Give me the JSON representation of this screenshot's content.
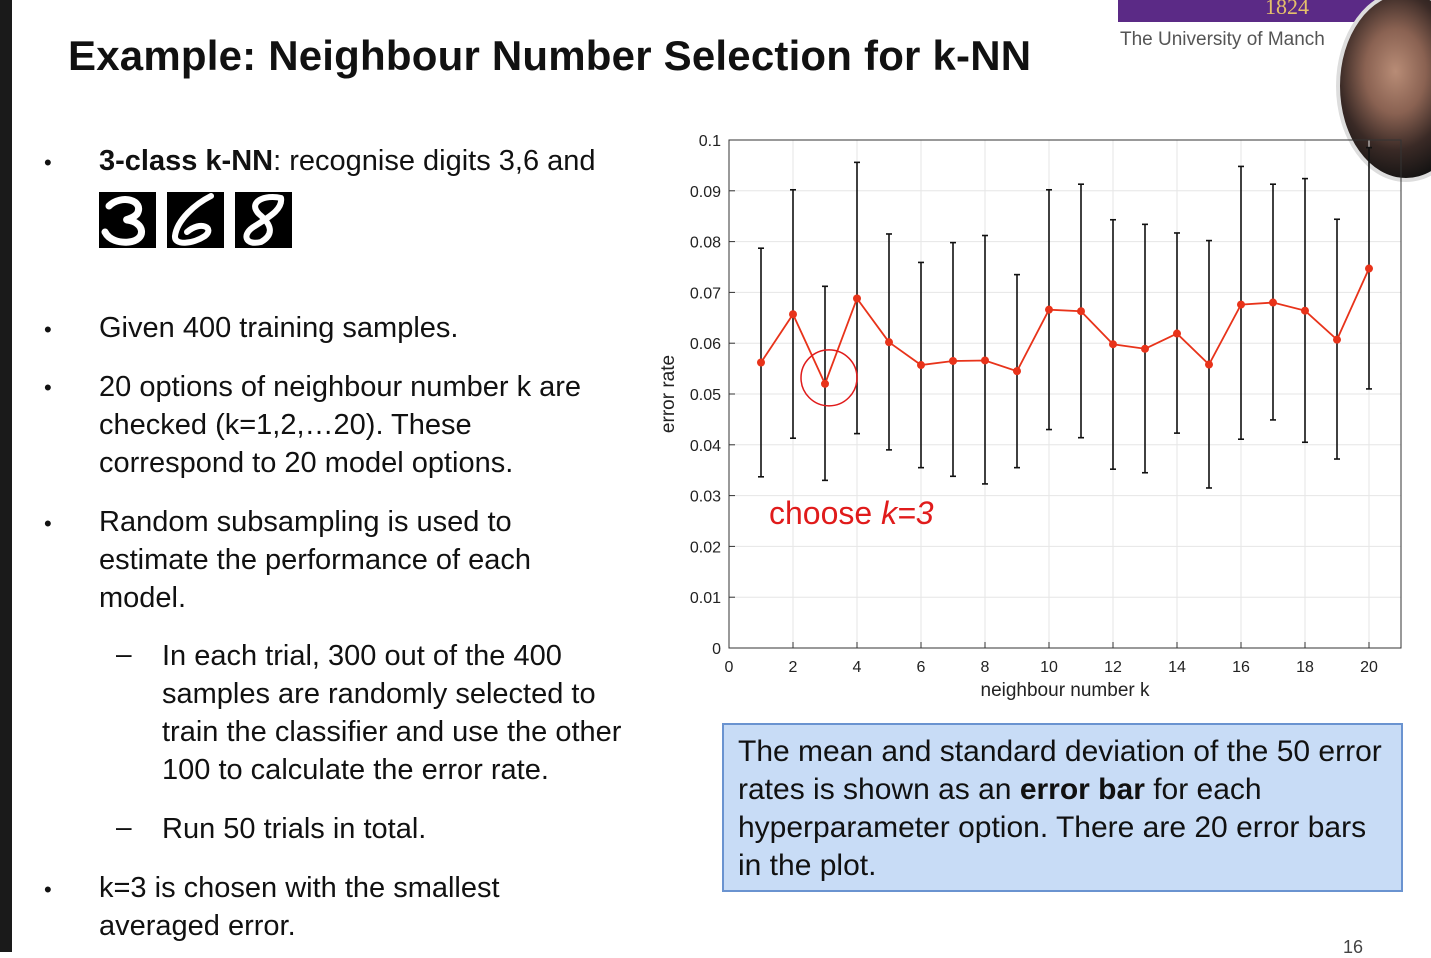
{
  "slide": {
    "title": "Example: Neighbour Number Selection for k-NN",
    "university": "The University of Manch",
    "logo_year": "1824",
    "page_number": "16"
  },
  "bullets": {
    "b1_bold": "3-class k-NN",
    "b1_rest": ": recognise digits 3,6 and",
    "digits": [
      "3",
      "6",
      "8"
    ],
    "b2": "Given 400 training samples.",
    "b3_l1": "20 options of neighbour number k are",
    "b3_l2": "checked (k=1,2,…20). These",
    "b3_l3": "correspond to 20 model options.",
    "b4_l1": "Random subsampling is used to",
    "b4_l2": "estimate the performance of each",
    "b4_l3": "model.",
    "s1_l1": "In each trial, 300 out of the 400",
    "s1_l2": "samples are randomly selected to",
    "s1_l3": "train the classifier and use the other",
    "s1_l4": "100 to calculate the error rate.",
    "s2": "Run 50 trials in total.",
    "b5_l1": "k=3 is chosen with the smallest",
    "b5_l2": "averaged error."
  },
  "note": {
    "pre": "The mean and standard deviation of the 50 error rates is shown as an ",
    "bold": "error bar",
    "post": " for each hyperparameter option. There are 20 error bars in the plot."
  },
  "chart_data": {
    "type": "line",
    "title": "",
    "xlabel": "neighbour number k",
    "ylabel": "error rate",
    "xlim": [
      0,
      21
    ],
    "ylim": [
      0,
      0.1
    ],
    "xticks": [
      0,
      2,
      4,
      6,
      8,
      10,
      12,
      14,
      16,
      18,
      20
    ],
    "yticks": [
      0,
      0.01,
      0.02,
      0.03,
      0.04,
      0.05,
      0.06,
      0.07,
      0.08,
      0.09,
      0.1
    ],
    "ytick_labels": [
      "0",
      "0.01",
      "0.02",
      "0.03",
      "0.04",
      "0.05",
      "0.06",
      "0.07",
      "0.08",
      "0.09",
      "0.1"
    ],
    "grid": true,
    "series": [
      {
        "x": [
          1,
          2,
          3,
          4,
          5,
          6,
          7,
          8,
          9,
          10,
          11,
          12,
          13,
          14,
          15,
          16,
          17,
          18,
          19,
          20
        ],
        "mean": [
          0.0562,
          0.0657,
          0.052,
          0.0688,
          0.0602,
          0.0557,
          0.0565,
          0.0566,
          0.0545,
          0.0666,
          0.0663,
          0.0598,
          0.0589,
          0.0619,
          0.0558,
          0.0676,
          0.068,
          0.0664,
          0.0607,
          0.0747
        ],
        "lower": [
          0.0337,
          0.0413,
          0.033,
          0.0422,
          0.039,
          0.0355,
          0.0338,
          0.0323,
          0.0355,
          0.043,
          0.0414,
          0.0352,
          0.0345,
          0.0423,
          0.0315,
          0.0411,
          0.0449,
          0.0405,
          0.0372,
          0.051
        ],
        "upper": [
          0.0787,
          0.0902,
          0.0712,
          0.0956,
          0.0815,
          0.0759,
          0.0798,
          0.0812,
          0.0735,
          0.0902,
          0.0913,
          0.0843,
          0.0834,
          0.0817,
          0.0802,
          0.0948,
          0.0913,
          0.0924,
          0.0844,
          0.0985
        ],
        "color": "#e8331a",
        "errorbar_color": "#111111"
      }
    ],
    "annotation": {
      "text": "choose ",
      "text_em": "k=3",
      "highlight_k": 3,
      "color": "#e01b1b"
    }
  }
}
